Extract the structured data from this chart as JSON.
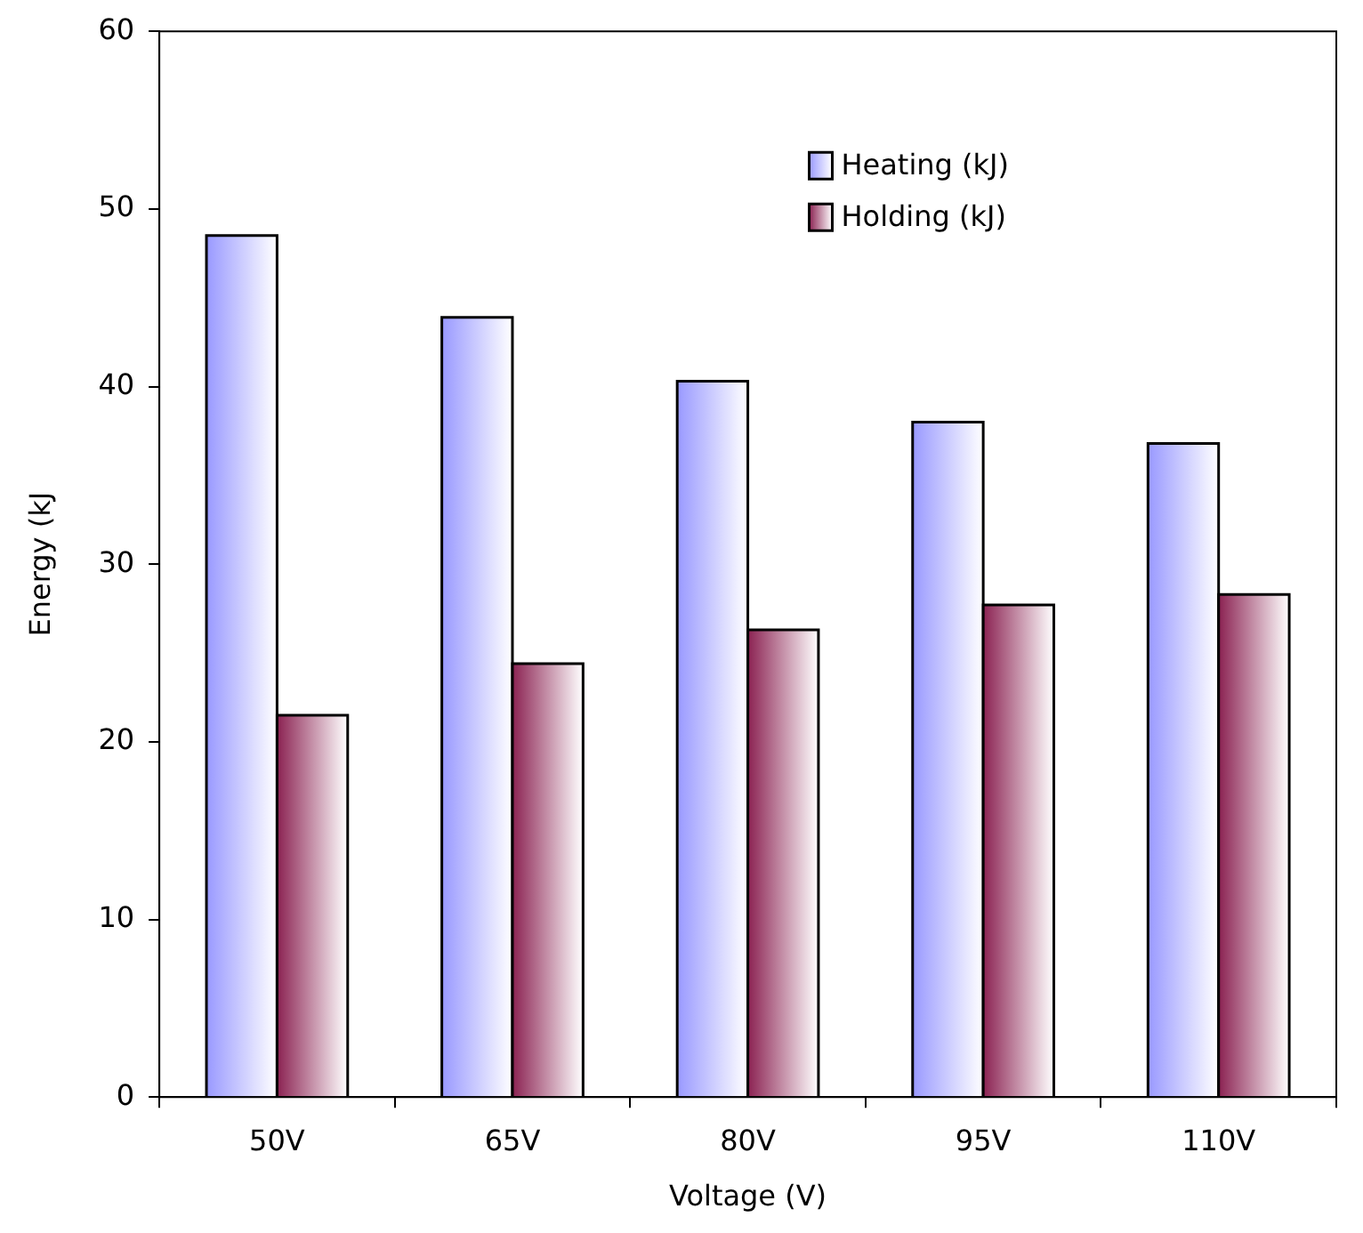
{
  "chart_data": {
    "type": "bar",
    "xlabel": "Voltage (V)",
    "ylabel": "Energy (kJ",
    "categories": [
      "50V",
      "65V",
      "80V",
      "95V",
      "110V"
    ],
    "series": [
      {
        "name": "Heating (kJ)",
        "color": "#9999ff",
        "values": [
          48.5,
          43.9,
          40.3,
          38.0,
          36.8
        ]
      },
      {
        "name": "Holding (kJ)",
        "color": "#8b2252",
        "values": [
          21.5,
          24.4,
          26.3,
          27.7,
          28.3
        ]
      }
    ],
    "ylim": [
      0,
      60
    ],
    "yticks": [
      0,
      10,
      20,
      30,
      40,
      50,
      60
    ],
    "grid": false,
    "legend": "top right"
  }
}
